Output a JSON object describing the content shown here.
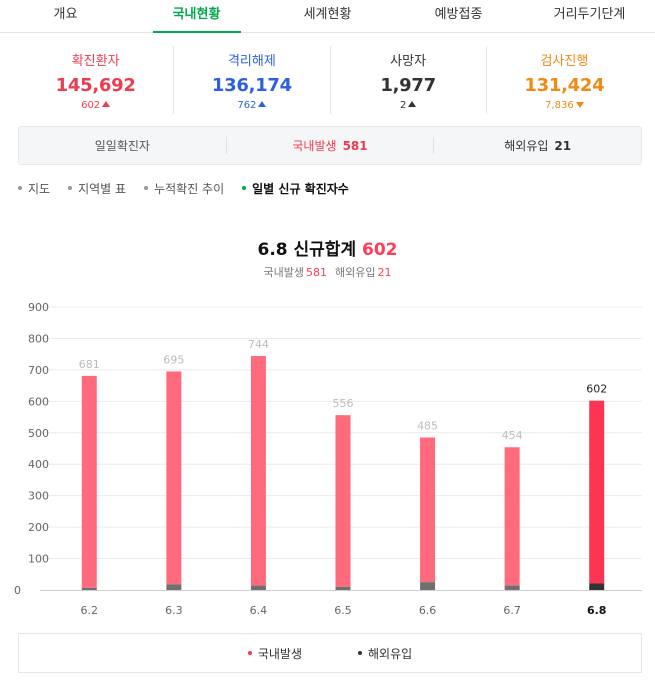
{
  "tabs": [
    {
      "label": "개요",
      "active": false
    },
    {
      "label": "국내현황",
      "active": true
    },
    {
      "label": "세계현황",
      "active": false
    },
    {
      "label": "예방접종",
      "active": false
    },
    {
      "label": "거리두기단계",
      "active": false
    }
  ],
  "stats": [
    {
      "label": "확진환자",
      "value": "145,692",
      "delta": "602",
      "direction": "up",
      "color": "#ef3b4f"
    },
    {
      "label": "격리해제",
      "value": "136,174",
      "delta": "762",
      "direction": "up",
      "color": "#2f5fe0"
    },
    {
      "label": "사망자",
      "value": "1,977",
      "delta": "2",
      "direction": "up",
      "color": "#333333"
    },
    {
      "label": "검사진행",
      "value": "131,424",
      "delta": "7,836",
      "direction": "down",
      "color": "#f08a16"
    }
  ],
  "daily": {
    "label": "일일확진자",
    "domestic_label": "국내발생",
    "domestic_value": "581",
    "overseas_label": "해외유입",
    "overseas_value": "21"
  },
  "subnav": [
    {
      "label": "지도",
      "active": false
    },
    {
      "label": "지역별 표",
      "active": false
    },
    {
      "label": "누적확진 추이",
      "active": false
    },
    {
      "label": "일별 신규 확진자수",
      "active": true
    }
  ],
  "chart_header": {
    "title_prefix": "6.8 신규합계",
    "title_total": "602",
    "domestic_label": "국내발생",
    "domestic_value": "581",
    "overseas_label": "해외유입",
    "overseas_value": "21"
  },
  "colors": {
    "domestic": "#ff6b7d",
    "domestic_highlight": "#ff3452",
    "overseas": "#707070",
    "overseas_highlight": "#333333",
    "label_muted": "#bbbbbb"
  },
  "chart_data": {
    "type": "bar",
    "stacked": true,
    "categories": [
      "6.2",
      "6.3",
      "6.4",
      "6.5",
      "6.6",
      "6.7",
      "6.8"
    ],
    "totals": [
      681,
      695,
      744,
      556,
      485,
      454,
      602
    ],
    "series": [
      {
        "name": "국내발생",
        "values": [
          674,
          677,
          730,
          546,
          460,
          440,
          581
        ]
      },
      {
        "name": "해외유입",
        "values": [
          7,
          18,
          14,
          10,
          25,
          14,
          21
        ]
      }
    ],
    "highlight_index": 6,
    "yticks": [
      0,
      100,
      200,
      300,
      400,
      500,
      600,
      700,
      800,
      900
    ],
    "ylim": [
      0,
      900
    ],
    "grid": true
  },
  "legend": [
    {
      "label": "국내발생",
      "color": "#ff3452"
    },
    {
      "label": "해외유입",
      "color": "#333333"
    }
  ]
}
